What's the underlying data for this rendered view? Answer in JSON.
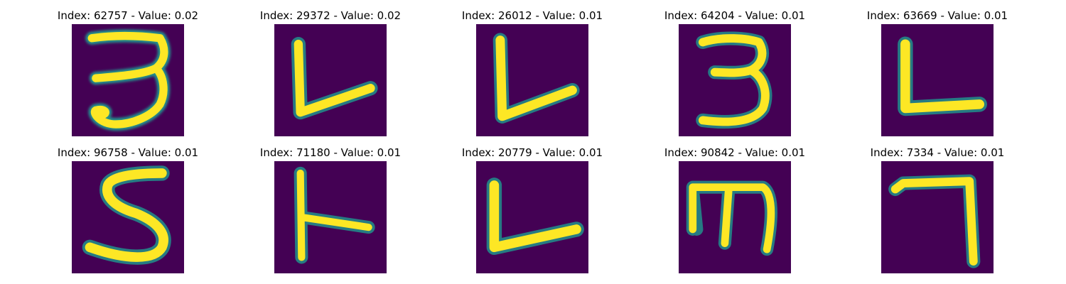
{
  "figure": {
    "background": "#ffffff",
    "colormap": {
      "low": "#440154",
      "mid": "#21918c",
      "high": "#fde725"
    },
    "panels": [
      {
        "title": "Index: 62757 - Value: 0.02",
        "glyph": "3"
      },
      {
        "title": "Index: 29372 - Value: 0.02",
        "glyph": "L"
      },
      {
        "title": "Index: 26012 - Value: 0.01",
        "glyph": "L"
      },
      {
        "title": "Index: 64204 - Value: 0.01",
        "glyph": "3"
      },
      {
        "title": "Index: 63669 - Value: 0.01",
        "glyph": "L"
      },
      {
        "title": "Index: 96758 - Value: 0.01",
        "glyph": "S"
      },
      {
        "title": "Index: 71180 - Value: 0.01",
        "glyph": "T-bar"
      },
      {
        "title": "Index: 20779 - Value: 0.01",
        "glyph": "L"
      },
      {
        "title": "Index: 90842 - Value: 0.01",
        "glyph": "E-rotated"
      },
      {
        "title": "Index: 7334 - Value: 0.01",
        "glyph": "7"
      }
    ]
  }
}
